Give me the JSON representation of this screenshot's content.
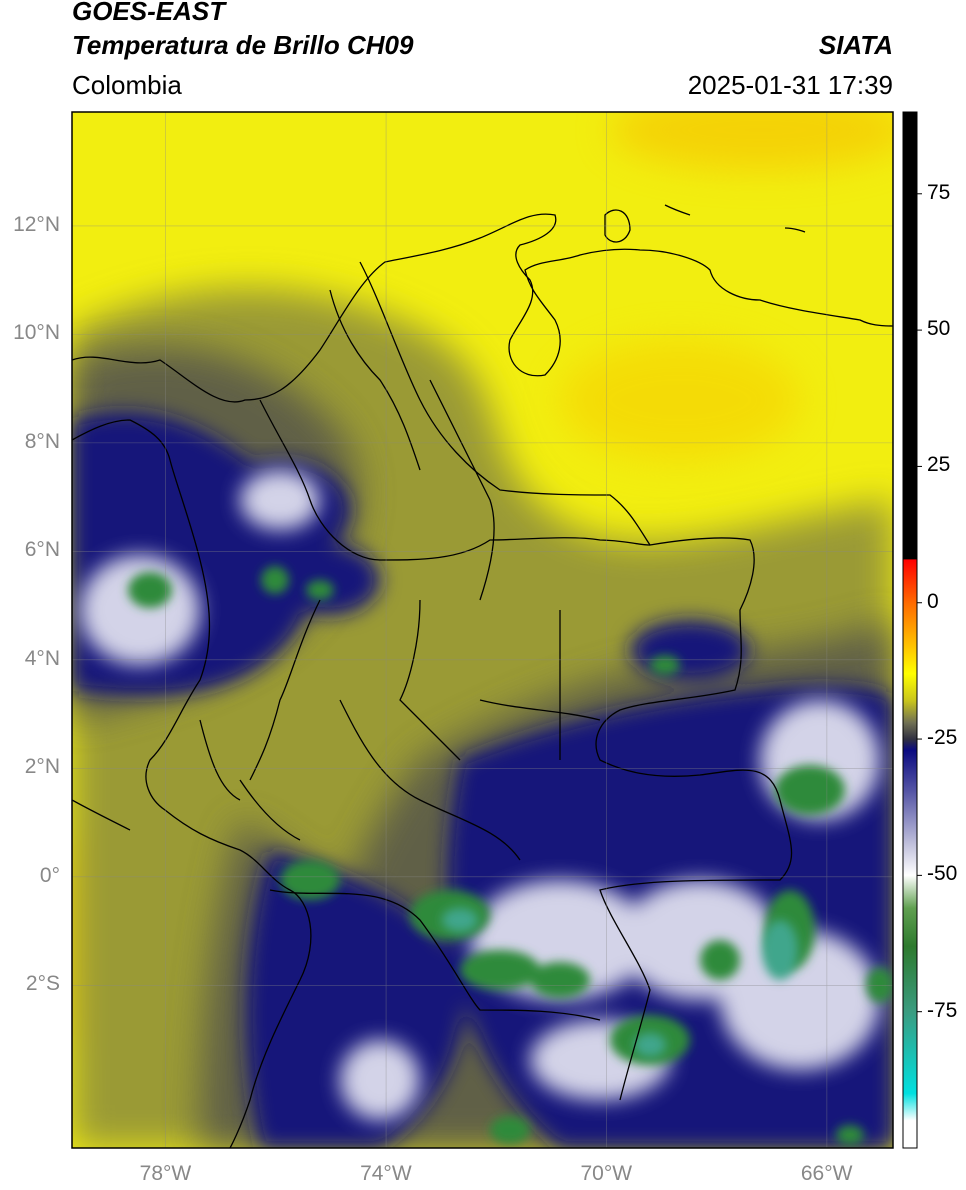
{
  "header": {
    "satellite": "GOES-EAST",
    "product": "Temperatura de Brillo CH09",
    "region": "Colombia",
    "agency": "SIATA",
    "datetime": "2025-01-31 17:39"
  },
  "map": {
    "lon_range": [
      -79.7,
      -64.8
    ],
    "lat_range": [
      -5.0,
      14.1
    ],
    "lat_ticks": [
      {
        "value": 12,
        "label": "12°N"
      },
      {
        "value": 10,
        "label": "10°N"
      },
      {
        "value": 8,
        "label": "8°N"
      },
      {
        "value": 6,
        "label": "6°N"
      },
      {
        "value": 4,
        "label": "4°N"
      },
      {
        "value": 2,
        "label": "2°N"
      },
      {
        "value": 0,
        "label": "0°"
      },
      {
        "value": -2,
        "label": "2°S"
      }
    ],
    "lon_ticks": [
      {
        "value": -78,
        "label": "78°W"
      },
      {
        "value": -74,
        "label": "74°W"
      },
      {
        "value": -70,
        "label": "70°W"
      },
      {
        "value": -66,
        "label": "66°W"
      }
    ],
    "grid": true
  },
  "colorbar": {
    "range": [
      -100,
      90
    ],
    "ticks": [
      {
        "value": 75,
        "label": "75"
      },
      {
        "value": 50,
        "label": "50"
      },
      {
        "value": 25,
        "label": "25"
      },
      {
        "value": 0,
        "label": "0"
      },
      {
        "value": -25,
        "label": "-25"
      },
      {
        "value": -50,
        "label": "-50"
      },
      {
        "value": -75,
        "label": "-75"
      }
    ],
    "stops": [
      {
        "value": 90,
        "color": "#000000"
      },
      {
        "value": 8,
        "color": "#000000"
      },
      {
        "value": 7.9,
        "color": "#ff0000"
      },
      {
        "value": 0,
        "color": "#ff6a00"
      },
      {
        "value": -8,
        "color": "#ffc400"
      },
      {
        "value": -13,
        "color": "#ffff00"
      },
      {
        "value": -18,
        "color": "#c8c41c"
      },
      {
        "value": -22,
        "color": "#707054"
      },
      {
        "value": -25,
        "color": "#303040"
      },
      {
        "value": -27,
        "color": "#0a0a80"
      },
      {
        "value": -35,
        "color": "#5a5aa8"
      },
      {
        "value": -45,
        "color": "#c8c8e0"
      },
      {
        "value": -50,
        "color": "#ffffff"
      },
      {
        "value": -56,
        "color": "#60a050"
      },
      {
        "value": -63,
        "color": "#2e7a2e"
      },
      {
        "value": -75,
        "color": "#3a9c80"
      },
      {
        "value": -90,
        "color": "#00e0e0"
      },
      {
        "value": -95,
        "color": "#ffffff"
      },
      {
        "value": -100,
        "color": "#ffffff"
      }
    ]
  },
  "colors": {
    "warm_clear": "#f4f400",
    "mid_level": "#8a8a3a",
    "cold_cloud": "#141480",
    "very_cold": "#2e8a3a"
  }
}
